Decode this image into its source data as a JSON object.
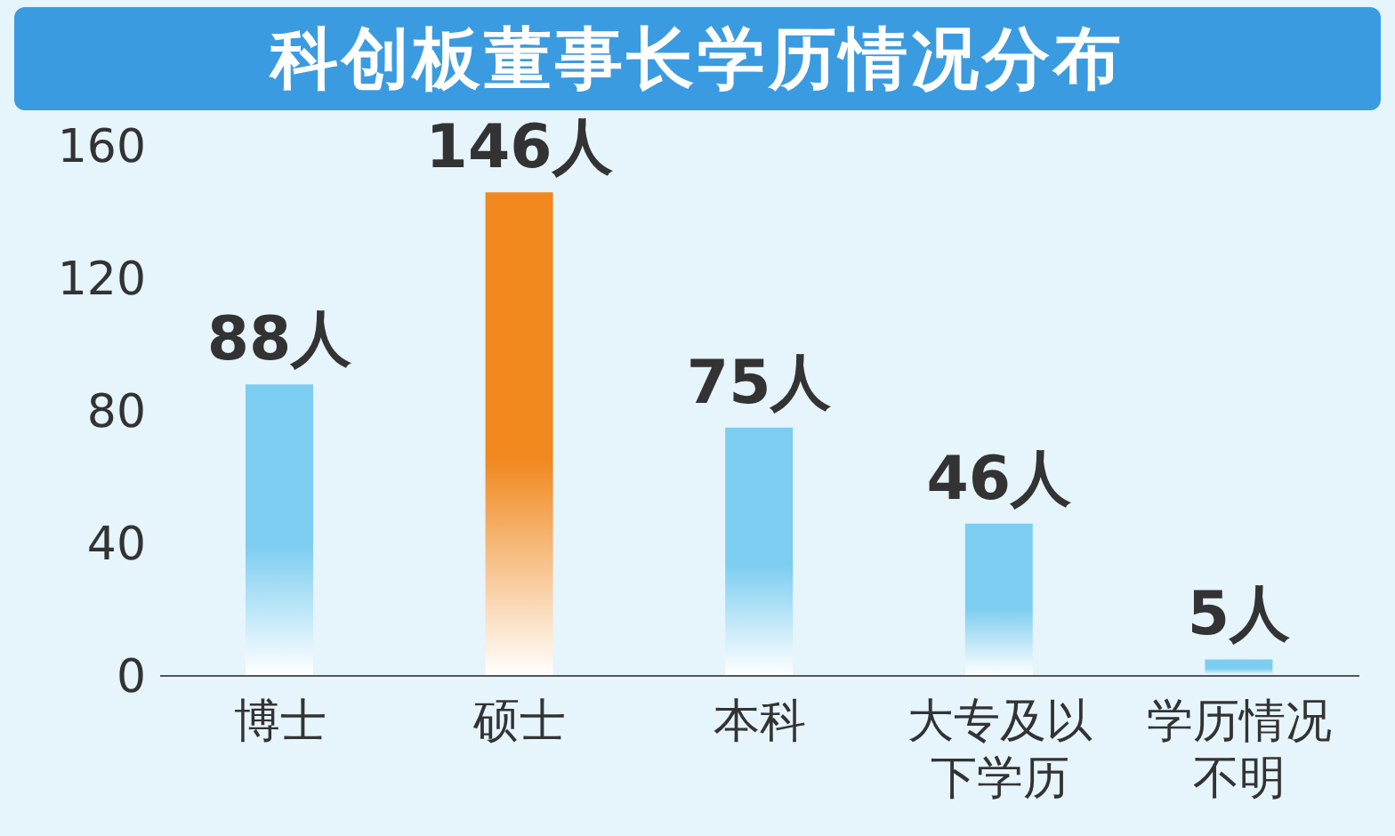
{
  "chart_data": {
    "type": "bar",
    "title": "科创板董事长学历情况分布",
    "categories": [
      "博士",
      "硕士",
      "本科",
      "大专及以下学历",
      "学历情况不明"
    ],
    "values": [
      88,
      146,
      75,
      46,
      5
    ],
    "colors": [
      "#7ccdf0",
      "#f0881e",
      "#7ccdf0",
      "#7ccdf0",
      "#7ccdf0"
    ],
    "value_labels": [
      "88人",
      "146人",
      "75人",
      "46人",
      "5人"
    ],
    "ylim": [
      0,
      160
    ],
    "yticks": [
      0,
      40,
      80,
      120,
      160
    ]
  }
}
